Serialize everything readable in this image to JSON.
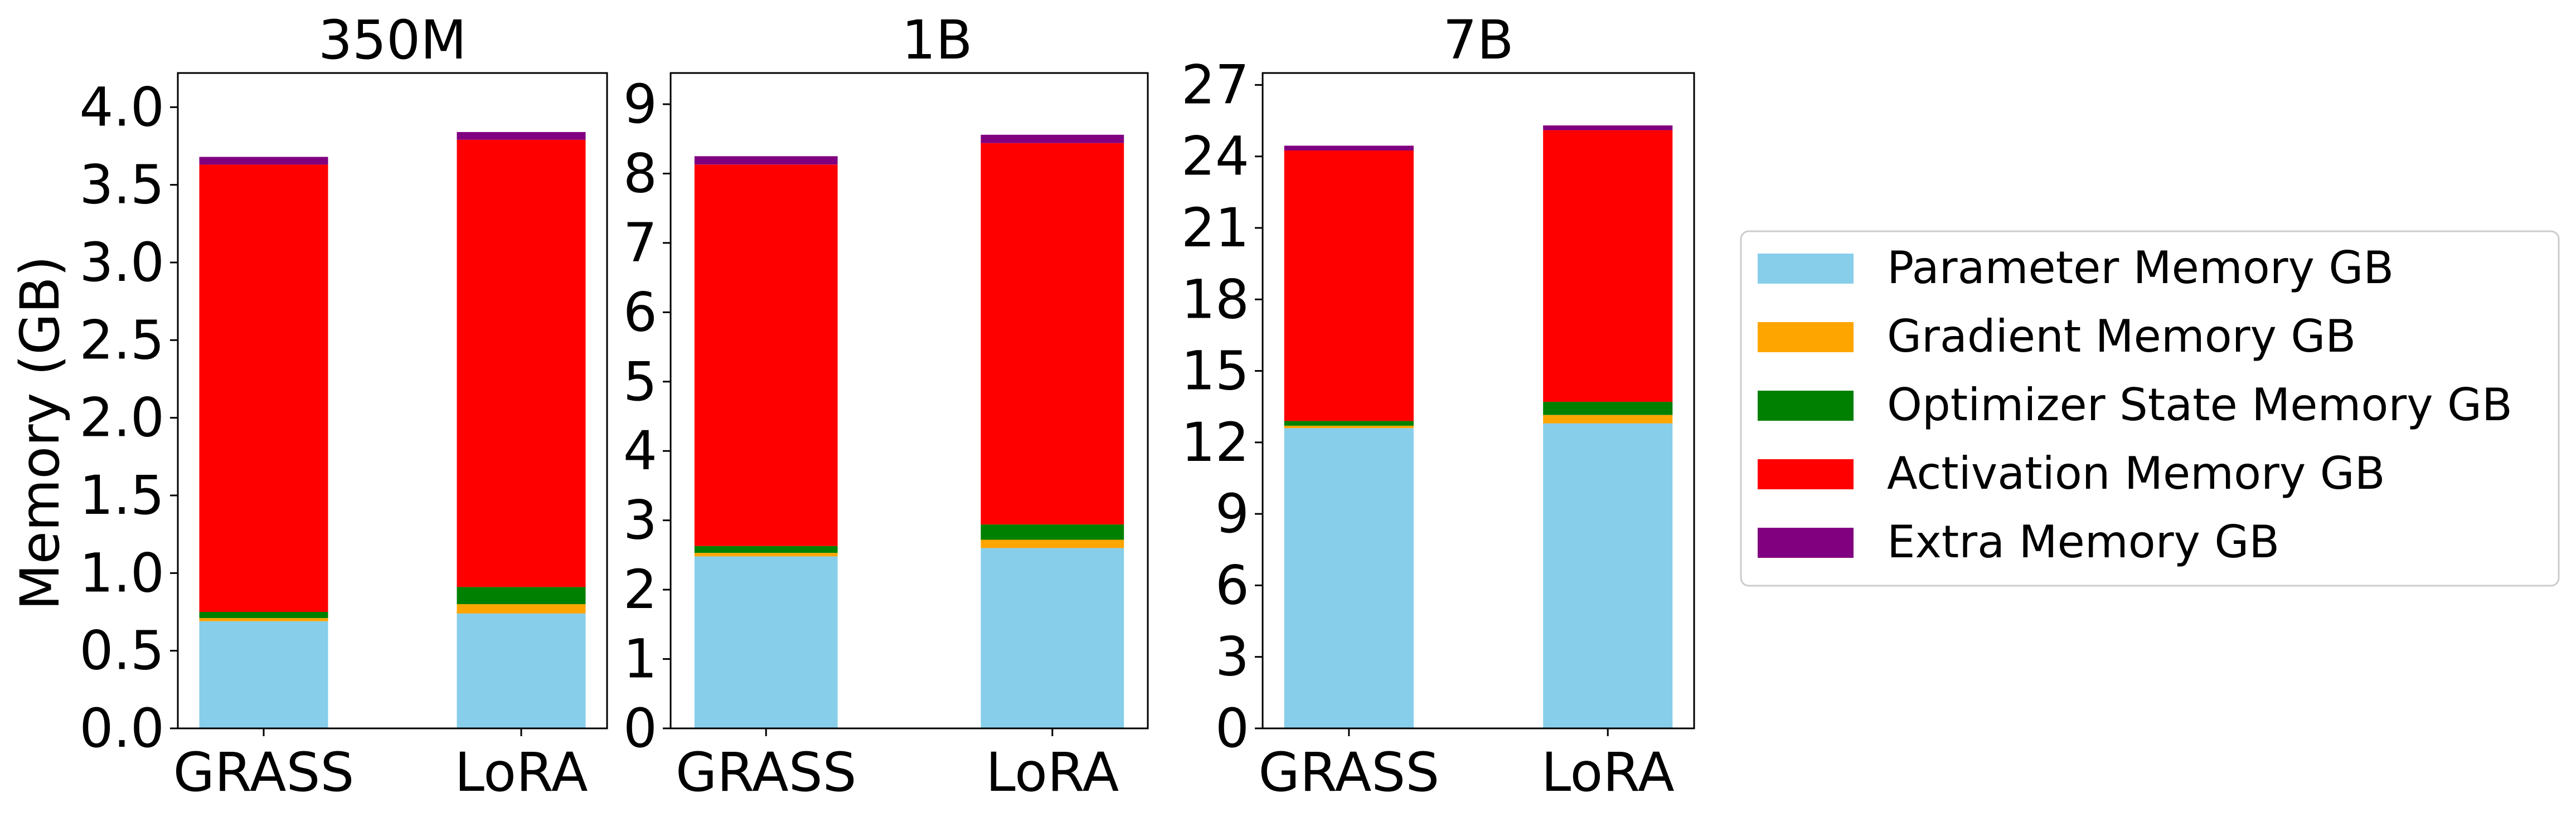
{
  "chart_data": {
    "type": "bar",
    "stacked": true,
    "ylabel": "Memory (GB)",
    "components": [
      {
        "name": "Parameter Memory GB",
        "color": "#87CEEB"
      },
      {
        "name": "Gradient Memory GB",
        "color": "#FFA500"
      },
      {
        "name": "Optimizer State Memory GB",
        "color": "#008000"
      },
      {
        "name": "Activation Memory GB",
        "color": "#FF0000"
      },
      {
        "name": "Extra Memory GB",
        "color": "#800080"
      }
    ],
    "legend_position": "right",
    "panels": [
      {
        "title": "350M",
        "categories": [
          "GRASS",
          "LoRA"
        ],
        "ylim": [
          0,
          4.22
        ],
        "yticks": [
          "0.0",
          "0.5",
          "1.0",
          "1.5",
          "2.0",
          "2.5",
          "3.0",
          "3.5",
          "4.0"
        ],
        "values": {
          "Parameter Memory GB": [
            0.69,
            0.74
          ],
          "Gradient Memory GB": [
            0.02,
            0.06
          ],
          "Optimizer State Memory GB": [
            0.04,
            0.11
          ],
          "Activation Memory GB": [
            2.88,
            2.88
          ],
          "Extra Memory GB": [
            0.05,
            0.05
          ]
        }
      },
      {
        "title": "1B",
        "categories": [
          "GRASS",
          "LoRA"
        ],
        "ylim": [
          0,
          9.45
        ],
        "yticks": [
          "0",
          "1",
          "2",
          "3",
          "4",
          "5",
          "6",
          "7",
          "8",
          "9"
        ],
        "values": {
          "Parameter Memory GB": [
            2.48,
            2.6
          ],
          "Gradient Memory GB": [
            0.05,
            0.12
          ],
          "Optimizer State Memory GB": [
            0.1,
            0.22
          ],
          "Activation Memory GB": [
            5.5,
            5.5
          ],
          "Extra Memory GB": [
            0.12,
            0.12
          ]
        }
      },
      {
        "title": "7B",
        "categories": [
          "GRASS",
          "LoRA"
        ],
        "ylim": [
          0,
          27.5
        ],
        "yticks": [
          "0",
          "3",
          "6",
          "9",
          "12",
          "15",
          "18",
          "21",
          "24",
          "27"
        ],
        "values": {
          "Parameter Memory GB": [
            12.6,
            12.8
          ],
          "Gradient Memory GB": [
            0.1,
            0.35
          ],
          "Optimizer State Memory GB": [
            0.2,
            0.55
          ],
          "Activation Memory GB": [
            11.35,
            11.4
          ],
          "Extra Memory GB": [
            0.2,
            0.2
          ]
        }
      }
    ]
  }
}
